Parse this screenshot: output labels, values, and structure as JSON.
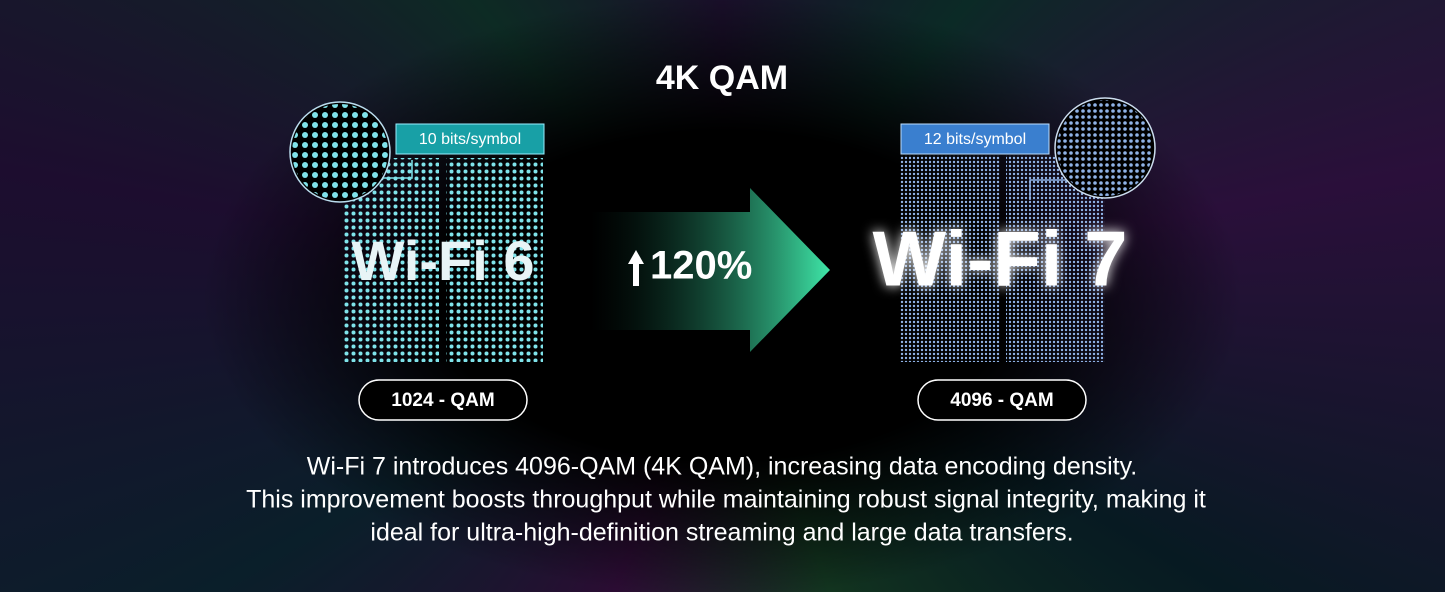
{
  "title": "4K QAM",
  "left": {
    "badge": "10 bits/symbol",
    "label": "Wi-Fi 6",
    "caption": "1024 - QAM"
  },
  "gain": "120%",
  "right": {
    "badge": "12 bits/symbol",
    "label": "Wi-Fi 7",
    "caption": "4096 - QAM"
  },
  "description": [
    "Wi-Fi 7 introduces 4096-QAM (4K QAM), increasing data encoding density.",
    "This improvement boosts throughput while maintaining robust signal integrity, making it",
    "ideal for ultra-high-definition streaming and large data transfers."
  ]
}
